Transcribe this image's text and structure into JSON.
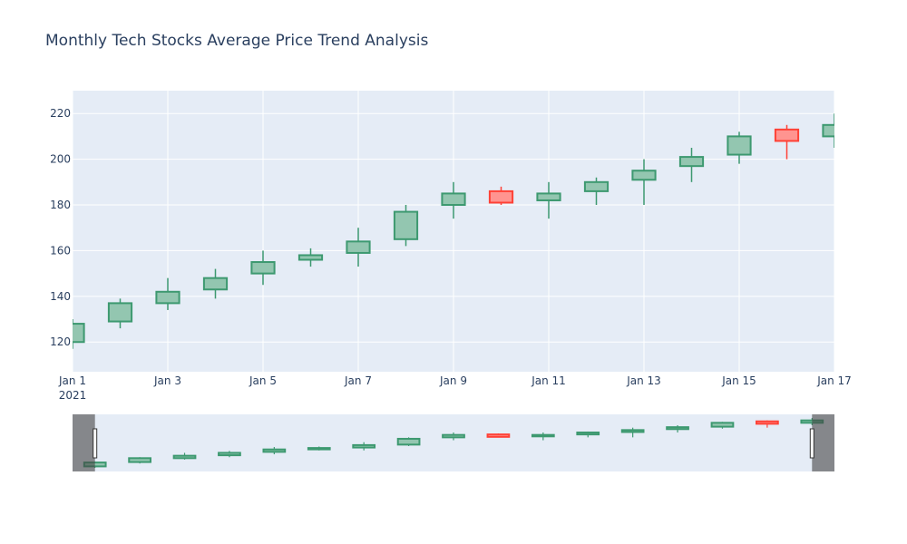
{
  "chart_data": {
    "type": "candlestick",
    "title": "Monthly Tech Stocks Average Price Trend Analysis",
    "x": [
      "2021-01-01",
      "2021-01-02",
      "2021-01-03",
      "2021-01-04",
      "2021-01-05",
      "2021-01-06",
      "2021-01-07",
      "2021-01-08",
      "2021-01-09",
      "2021-01-10",
      "2021-01-11",
      "2021-01-12",
      "2021-01-13",
      "2021-01-14",
      "2021-01-15",
      "2021-01-16",
      "2021-01-17"
    ],
    "open": [
      120,
      129,
      137,
      143,
      150,
      156,
      159,
      165,
      180,
      186,
      182,
      186,
      191,
      197,
      202,
      213,
      210
    ],
    "high": [
      130,
      139,
      148,
      152,
      160,
      161,
      170,
      180,
      190,
      188,
      190,
      192,
      200,
      205,
      212,
      215,
      220
    ],
    "low": [
      117,
      126,
      134,
      139,
      145,
      153,
      153,
      162,
      174,
      180,
      174,
      180,
      180,
      190,
      198,
      200,
      205
    ],
    "close": [
      128,
      137,
      142,
      148,
      155,
      158,
      164,
      177,
      185,
      181,
      185,
      190,
      195,
      201,
      210,
      208,
      215
    ],
    "xlim": [
      "2021-01-01",
      "2021-01-17"
    ],
    "ylim": [
      107,
      230
    ],
    "y_ticks": [
      120,
      140,
      160,
      180,
      200,
      220
    ],
    "x_ticks": [
      "Jan 1",
      "Jan 3",
      "Jan 5",
      "Jan 7",
      "Jan 9",
      "Jan 11",
      "Jan 13",
      "Jan 15",
      "Jan 17"
    ],
    "x_tick_year": "2021",
    "increasing_color": "#3d9970",
    "increasing_fill": "#93c6b0",
    "decreasing_color": "#ff4136",
    "decreasing_fill": "#ff9490",
    "plot_bg": "#e5ecf6",
    "grid": true,
    "rangeslider": true
  }
}
